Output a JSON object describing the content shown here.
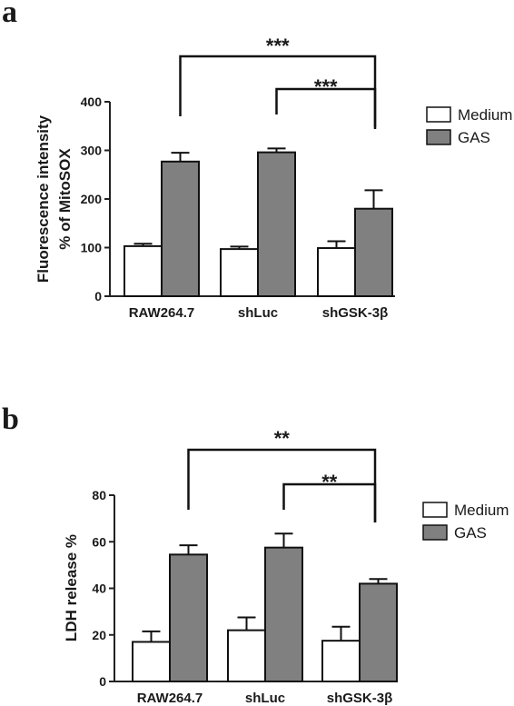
{
  "chart_data": [
    {
      "panel_letter": "a",
      "type": "bar",
      "categories": [
        "RAW264.7",
        "shLuc",
        "shGSK-3β"
      ],
      "ylabel_lines": [
        "Fluorescence intensity",
        "% of MitoSOX"
      ],
      "ylim": [
        0,
        400
      ],
      "yticks": [
        0,
        100,
        200,
        300,
        400
      ],
      "grid": false,
      "legend_position": "right",
      "series": [
        {
          "name": "Medium",
          "color": "#ffffff",
          "values": [
            103,
            97,
            99
          ],
          "errors": [
            5,
            5,
            14
          ]
        },
        {
          "name": "GAS",
          "color": "#808080",
          "values": [
            277,
            296,
            180
          ],
          "errors": [
            18,
            8,
            38
          ]
        }
      ],
      "significance": [
        {
          "label": "***",
          "from": "RAW264.7",
          "to": "shGSK-3β"
        },
        {
          "label": "***",
          "from": "shLuc",
          "to": "shGSK-3β"
        }
      ]
    },
    {
      "panel_letter": "b",
      "type": "bar",
      "categories": [
        "RAW264.7",
        "shLuc",
        "shGSK-3β"
      ],
      "ylabel_lines": [
        "LDH release %"
      ],
      "ylim": [
        0,
        80
      ],
      "yticks": [
        0,
        20,
        40,
        60,
        80
      ],
      "grid": false,
      "legend_position": "right",
      "series": [
        {
          "name": "Medium",
          "color": "#ffffff",
          "values": [
            17,
            22,
            17.5
          ],
          "errors": [
            4.5,
            5.5,
            6
          ]
        },
        {
          "name": "GAS",
          "color": "#808080",
          "values": [
            54.5,
            57.5,
            42
          ],
          "errors": [
            4,
            6,
            2
          ]
        }
      ],
      "significance": [
        {
          "label": "**",
          "from": "RAW264.7",
          "to": "shGSK-3β"
        },
        {
          "label": "**",
          "from": "shLuc",
          "to": "shGSK-3β"
        }
      ]
    }
  ]
}
